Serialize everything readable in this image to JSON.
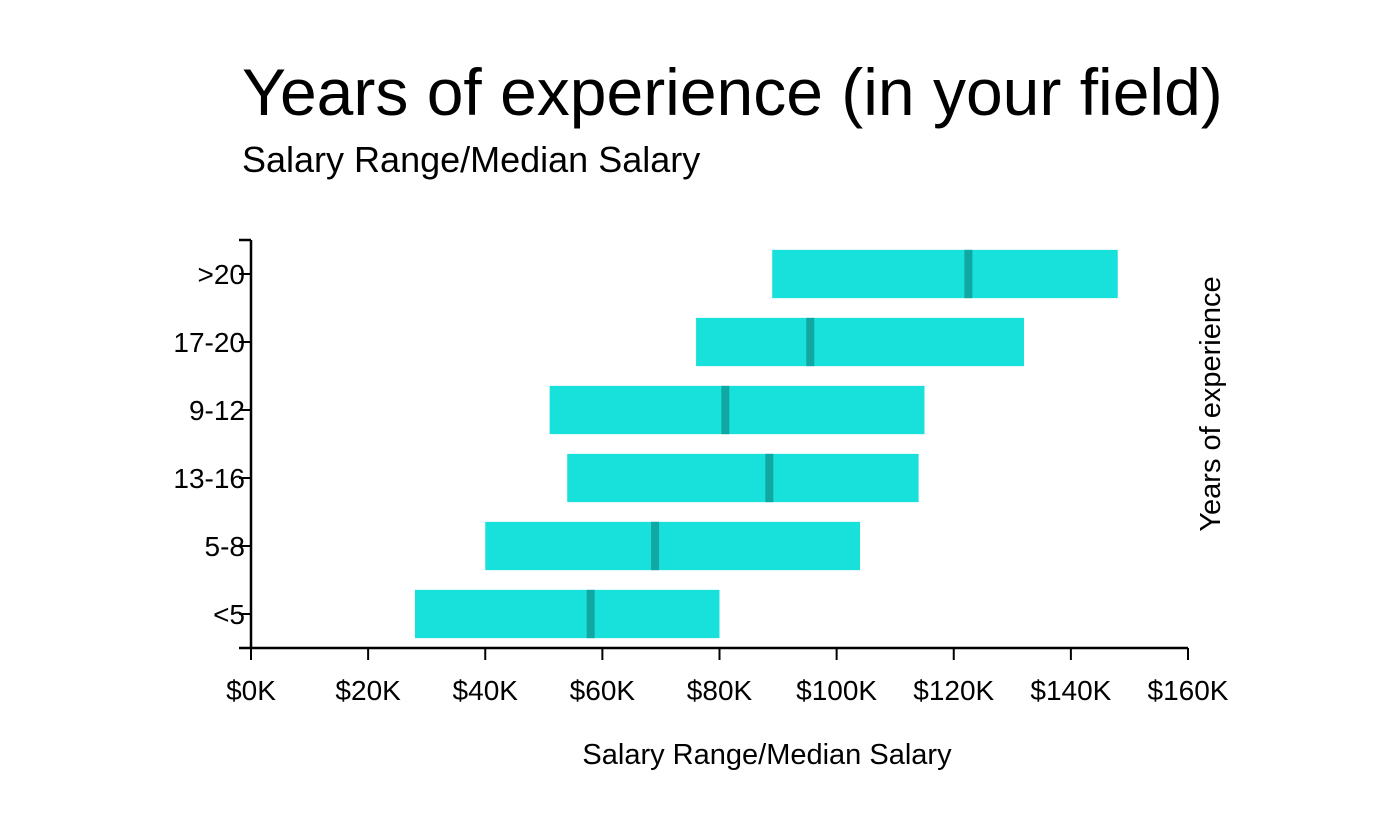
{
  "chart_data": {
    "type": "bar",
    "orientation": "horizontal",
    "title": "Years of experience (in your field)",
    "subtitle": "Salary Range/Median Salary",
    "xlabel": "Salary Range/Median Salary",
    "ylabel": "Years of experience",
    "categories": [
      ">20",
      "17-20",
      "9-12",
      "13-16",
      "5-8",
      "<5"
    ],
    "x_ticks": [
      "$0K",
      "$20K",
      "$40K",
      "$60K",
      "$80K",
      "$100K",
      "$120K",
      "$140K",
      "$160K"
    ],
    "xlim": [
      0,
      160000
    ],
    "series": [
      {
        "min": [
          89000,
          76000,
          51000,
          54000,
          40000,
          28000
        ],
        "max": [
          148000,
          132000,
          115000,
          114000,
          104000,
          80000
        ],
        "median": [
          122500,
          95500,
          81000,
          88500,
          69000,
          58000
        ]
      }
    ],
    "grid": false,
    "legend": "none",
    "bar_color": "#18e0da",
    "median_color": "#11a8a3"
  }
}
